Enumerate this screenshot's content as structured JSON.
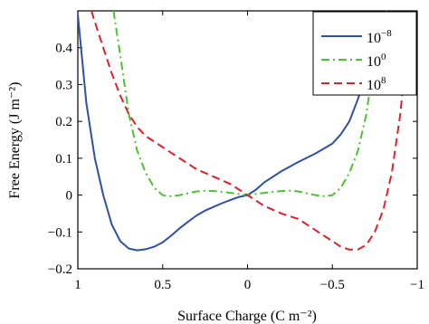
{
  "chart_data": {
    "type": "line",
    "xlabel": "Surface Charge (C m⁻²)",
    "ylabel": "Free Energy (J m⁻²)",
    "xlim": [
      1,
      -1
    ],
    "ylim": [
      -0.2,
      0.5
    ],
    "x_reversed": true,
    "x_ticks": [
      1,
      0.5,
      0,
      -0.5,
      -1
    ],
    "x_tick_labels": [
      "1",
      "0.5",
      "0",
      "−0.5",
      "−1"
    ],
    "y_ticks": [
      -0.2,
      -0.1,
      0,
      0.1,
      0.2,
      0.3,
      0.4
    ],
    "y_tick_labels": [
      "−0.2",
      "−0.1",
      "0",
      "0.1",
      "0.2",
      "0.3",
      "0.4"
    ],
    "grid": false,
    "legend_position": "top-right",
    "series": [
      {
        "name_base": "10",
        "name_exp": "−8",
        "color": "#2f4fa8",
        "dash": "solid",
        "x": [
          1.0,
          0.95,
          0.9,
          0.85,
          0.8,
          0.75,
          0.7,
          0.65,
          0.6,
          0.55,
          0.5,
          0.45,
          0.4,
          0.35,
          0.3,
          0.25,
          0.2,
          0.15,
          0.1,
          0.05,
          0.0,
          -0.05,
          -0.1,
          -0.2,
          -0.3,
          -0.4,
          -0.5,
          -0.55,
          -0.6,
          -0.65,
          -0.7,
          -0.75,
          -0.8,
          -0.82
        ],
        "y": [
          0.49,
          0.25,
          0.1,
          0.0,
          -0.08,
          -0.125,
          -0.145,
          -0.15,
          -0.147,
          -0.14,
          -0.128,
          -0.11,
          -0.09,
          -0.072,
          -0.055,
          -0.042,
          -0.032,
          -0.022,
          -0.013,
          -0.005,
          0.0,
          0.015,
          0.035,
          0.065,
          0.09,
          0.113,
          0.14,
          0.165,
          0.2,
          0.26,
          0.33,
          0.4,
          0.47,
          0.5
        ]
      },
      {
        "name_base": "10",
        "name_exp": "0",
        "color": "#4cc22c",
        "dash": "dashdot",
        "x": [
          0.79,
          0.75,
          0.7,
          0.65,
          0.6,
          0.55,
          0.5,
          0.45,
          0.4,
          0.35,
          0.3,
          0.25,
          0.2,
          0.15,
          0.1,
          0.05,
          0.0,
          -0.05,
          -0.1,
          -0.15,
          -0.2,
          -0.25,
          -0.3,
          -0.35,
          -0.4,
          -0.45,
          -0.5,
          -0.55,
          -0.6,
          -0.65,
          -0.7,
          -0.75,
          -0.79
        ],
        "y": [
          0.5,
          0.38,
          0.22,
          0.12,
          0.06,
          0.02,
          0.0,
          -0.003,
          0.0,
          0.005,
          0.01,
          0.012,
          0.011,
          0.009,
          0.006,
          0.003,
          0.0,
          0.003,
          0.006,
          0.009,
          0.011,
          0.012,
          0.01,
          0.005,
          0.0,
          -0.003,
          0.0,
          0.02,
          0.06,
          0.12,
          0.22,
          0.38,
          0.5
        ]
      },
      {
        "name_base": "10",
        "name_exp": "8",
        "color": "#e0202a",
        "dash": "dashed",
        "x": [
          0.92,
          0.9,
          0.85,
          0.8,
          0.75,
          0.7,
          0.65,
          0.6,
          0.55,
          0.5,
          0.45,
          0.4,
          0.35,
          0.3,
          0.25,
          0.2,
          0.15,
          0.1,
          0.05,
          0.0,
          -0.05,
          -0.1,
          -0.2,
          -0.3,
          -0.4,
          -0.5,
          -0.55,
          -0.6,
          -0.65,
          -0.7,
          -0.75,
          -0.8,
          -0.85,
          -0.9,
          -0.95
        ],
        "y": [
          0.5,
          0.47,
          0.4,
          0.33,
          0.27,
          0.22,
          0.185,
          0.16,
          0.145,
          0.13,
          0.115,
          0.1,
          0.085,
          0.07,
          0.06,
          0.05,
          0.04,
          0.03,
          0.015,
          0.0,
          -0.015,
          -0.03,
          -0.05,
          -0.065,
          -0.095,
          -0.125,
          -0.14,
          -0.148,
          -0.148,
          -0.135,
          -0.1,
          -0.04,
          0.06,
          0.22,
          0.45
        ]
      }
    ]
  }
}
